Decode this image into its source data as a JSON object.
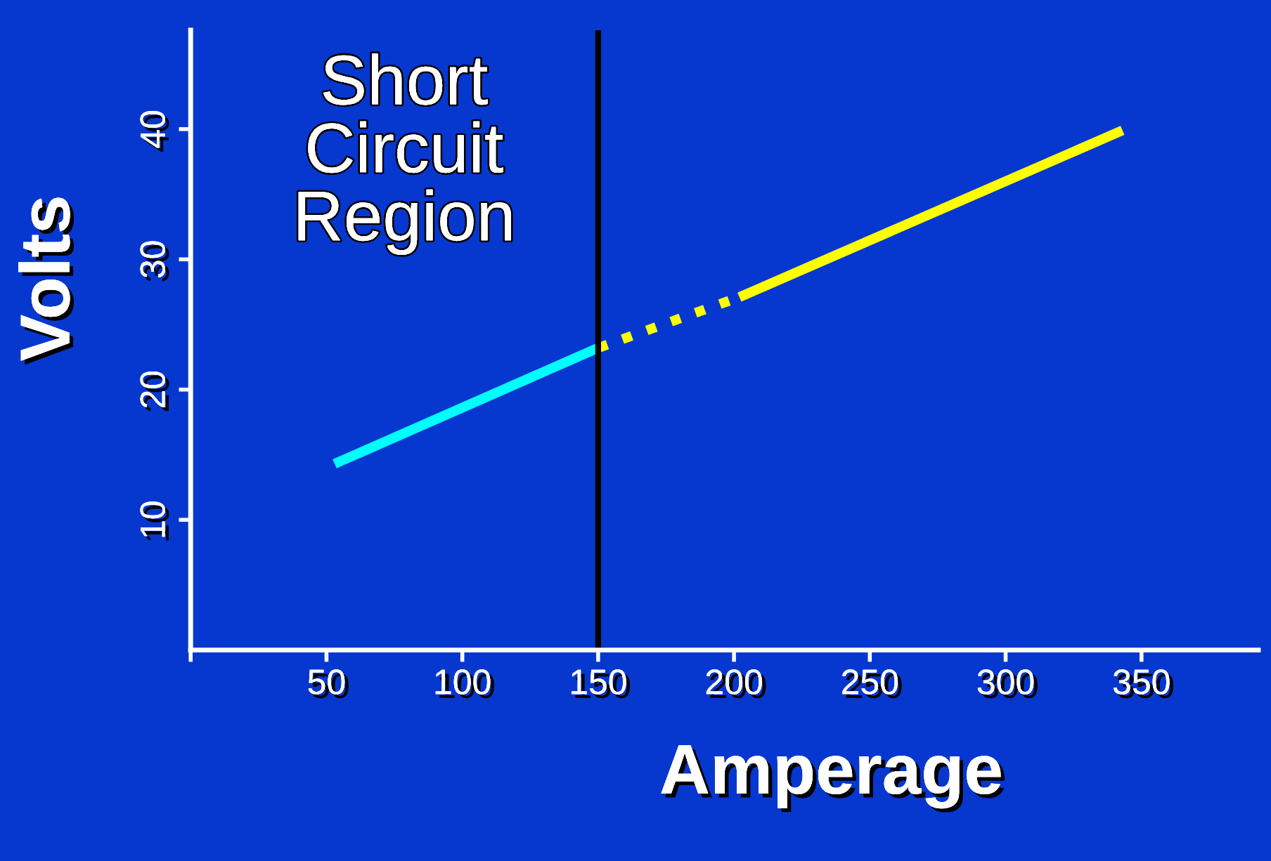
{
  "chart_data": {
    "type": "line",
    "xlabel": "Amperage",
    "ylabel": "Volts",
    "xlim": [
      0,
      393
    ],
    "xticks": [
      {
        "value": 0,
        "label": null
      },
      50,
      100,
      150,
      200,
      250,
      300,
      350
    ],
    "ylim": [
      0,
      47.6
    ],
    "yticks": [
      10,
      20,
      30,
      40
    ],
    "grid": false,
    "legend": false,
    "marker": "none",
    "series": [
      {
        "color": "#00ffff",
        "x": [
          53,
          150
        ],
        "values": [
          14.3,
          23.2
        ],
        "line_style": "solid"
      },
      {
        "color": "#ffff00",
        "x": [
          150,
          202
        ],
        "values": [
          23.2,
          27.1
        ],
        "line_style": "dotted"
      },
      {
        "color": "#ffff00",
        "x": [
          202,
          343
        ],
        "values": [
          27.1,
          39.9
        ],
        "line_style": "solid"
      }
    ],
    "ref_lines": [
      {
        "axis": "x",
        "value": 150,
        "color": "#000000",
        "line_style": "solid"
      }
    ],
    "annotations": [
      "Short\nCircuit\nRegion"
    ]
  }
}
